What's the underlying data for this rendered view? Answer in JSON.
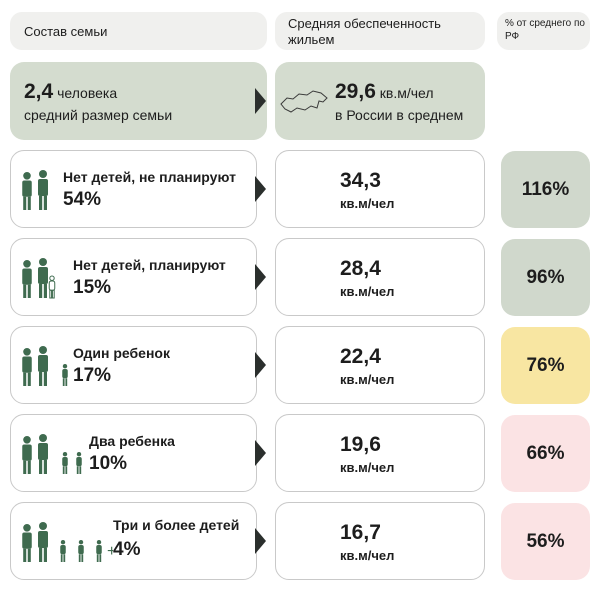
{
  "header": {
    "family": "Состав семьи",
    "housing": "Средняя обеспеченность жильем",
    "percent": "% от среднего по РФ"
  },
  "summary": {
    "size": "2,4",
    "size_unit": "человека",
    "size_label": "средний размер семьи",
    "area": "29,6",
    "area_unit": "кв.м/чел",
    "area_label": "в России в среднем"
  },
  "rows": [
    {
      "label": "Нет детей, не планируют",
      "share": "54%",
      "area": "34,3",
      "unit": "кв.м/чел",
      "percent": "116%"
    },
    {
      "label": "Нет детей, планируют",
      "share": "15%",
      "area": "28,4",
      "unit": "кв.м/чел",
      "percent": "96%"
    },
    {
      "label": "Один ребенок",
      "share": "17%",
      "area": "22,4",
      "unit": "кв.м/чел",
      "percent": "76%"
    },
    {
      "label": "Два ребенка",
      "share": "10%",
      "area": "19,6",
      "unit": "кв.м/чел",
      "percent": "66%"
    },
    {
      "label": "Три и более детей",
      "share": "4%",
      "area": "16,7",
      "unit": "кв.м/чел",
      "percent": "56%"
    }
  ]
}
